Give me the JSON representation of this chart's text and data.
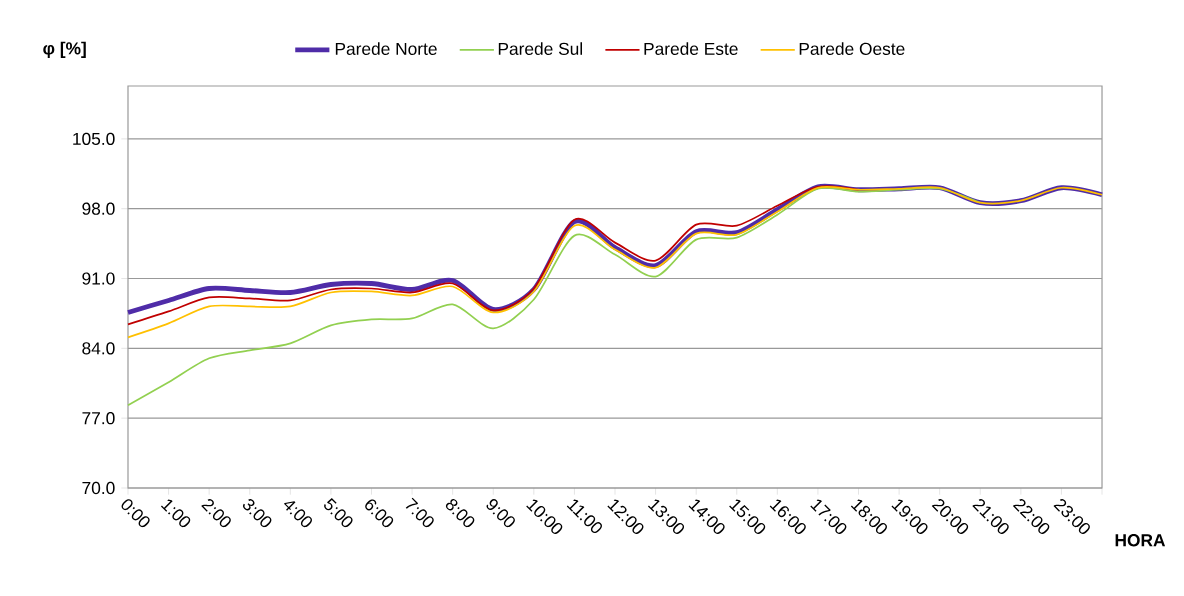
{
  "chart_data": {
    "type": "line",
    "ylabel": "φ [%]",
    "xlabel": "HORA",
    "categories": [
      "0:00",
      "1:00",
      "2:00",
      "3:00",
      "4:00",
      "5:00",
      "6:00",
      "7:00",
      "8:00",
      "9:00",
      "10:00",
      "11:00",
      "12:00",
      "13:00",
      "14:00",
      "15:00",
      "16:00",
      "17:00",
      "18:00",
      "19:00",
      "20:00",
      "21:00",
      "22:00",
      "23:00",
      null
    ],
    "series": [
      {
        "name": "Parede Norte",
        "color": "#4f2ca8",
        "values": [
          87.6,
          88.8,
          90.0,
          89.8,
          89.6,
          90.4,
          90.5,
          89.9,
          90.8,
          87.9,
          89.9,
          96.7,
          94.1,
          92.3,
          95.7,
          95.6,
          97.9,
          100.2,
          99.9,
          100.0,
          100.1,
          98.6,
          98.8,
          100.1,
          99.4
        ]
      },
      {
        "name": "Parede Sul",
        "color": "#92d050",
        "values": [
          78.3,
          80.6,
          83.0,
          83.8,
          84.5,
          86.3,
          86.9,
          87.0,
          88.4,
          86.0,
          88.9,
          95.3,
          93.4,
          91.2,
          94.9,
          95.1,
          97.4,
          100.0,
          99.7,
          99.9,
          100.0,
          98.6,
          null,
          null,
          null
        ]
      },
      {
        "name": "Parede Este",
        "color": "#c00000",
        "values": [
          86.4,
          87.7,
          89.1,
          89.0,
          88.8,
          89.9,
          90.0,
          89.6,
          90.5,
          87.8,
          90.0,
          96.9,
          94.6,
          92.8,
          96.4,
          96.3,
          98.3,
          100.2,
          99.9,
          null,
          null,
          null,
          null,
          null,
          null
        ]
      },
      {
        "name": "Parede Oeste",
        "color": "#ffc000",
        "values": [
          85.1,
          86.5,
          88.2,
          88.2,
          88.2,
          89.6,
          89.7,
          89.3,
          90.2,
          87.6,
          89.7,
          96.3,
          93.9,
          92.1,
          95.5,
          95.4,
          97.7,
          100.1,
          99.9,
          100.0,
          100.1,
          98.6,
          98.8,
          100.1,
          99.4
        ]
      }
    ],
    "ylim": [
      70,
      110.3
    ],
    "yticks": [
      {
        "value": 70,
        "label": "70.0"
      },
      {
        "value": 77,
        "label": "77.0"
      },
      {
        "value": 84,
        "label": "84.0"
      },
      {
        "value": 91,
        "label": "91.0"
      },
      {
        "value": 98,
        "label": "98.0"
      },
      {
        "value": 105,
        "label": "105.0"
      }
    ],
    "grid": "y",
    "legend": "top"
  }
}
